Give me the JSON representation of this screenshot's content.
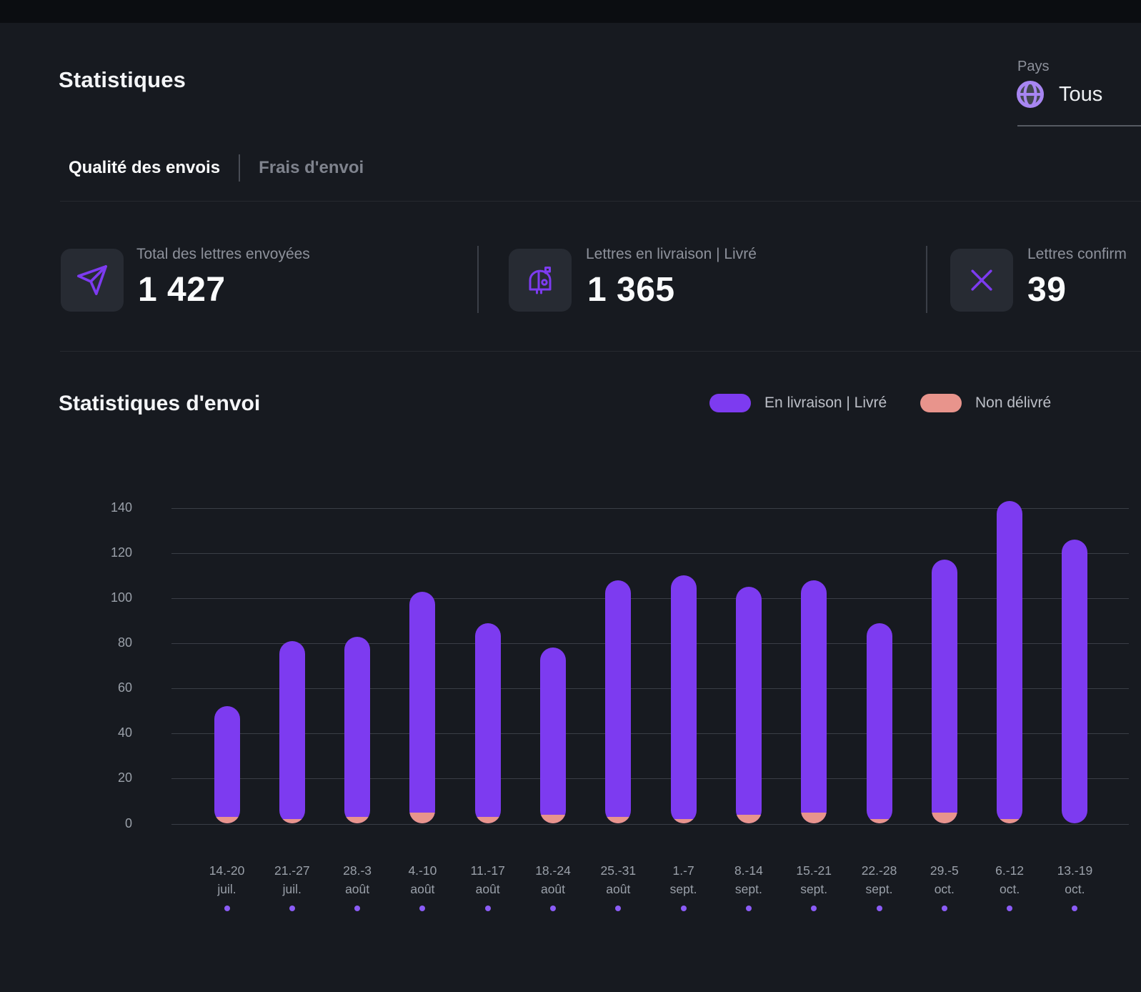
{
  "header": {
    "title": "Statistiques",
    "country_select": {
      "label": "Pays",
      "value": "Tous",
      "icon": "globe-icon"
    }
  },
  "tabs": [
    {
      "label": "Qualité des envois",
      "active": true
    },
    {
      "label": "Frais d'envoi",
      "active": false
    }
  ],
  "stats": [
    {
      "icon": "send-icon",
      "label": "Total des lettres envoyées",
      "value": "1 427"
    },
    {
      "icon": "mailbox-icon",
      "label": "Lettres en livraison | Livré",
      "value": "1 365"
    },
    {
      "icon": "x-icon",
      "label": "Lettres confirm",
      "value": "39"
    }
  ],
  "chart_section": {
    "title": "Statistiques d'envoi"
  },
  "legend": [
    {
      "label": "En livraison | Livré",
      "color": "#7d3bf0"
    },
    {
      "label": "Non délivré",
      "color": "#e8948c"
    }
  ],
  "colors": {
    "background": "#171a20",
    "accent_purple": "#7d3bf0",
    "accent_salmon": "#e8948c",
    "dot_purple": "#8b5cf6"
  },
  "chart_data": {
    "type": "bar",
    "stacked": true,
    "title": "Statistiques d'envoi",
    "xlabel": "",
    "ylabel": "",
    "ylim": [
      0,
      140
    ],
    "yticks": [
      0,
      20,
      40,
      60,
      80,
      100,
      120,
      140
    ],
    "grid": true,
    "legend_position": "top-right",
    "categories": [
      {
        "line1": "14.-20",
        "line2": "juil."
      },
      {
        "line1": "21.-27",
        "line2": "juil."
      },
      {
        "line1": "28.-3",
        "line2": "août"
      },
      {
        "line1": "4.-10",
        "line2": "août"
      },
      {
        "line1": "11.-17",
        "line2": "août"
      },
      {
        "line1": "18.-24",
        "line2": "août"
      },
      {
        "line1": "25.-31",
        "line2": "août"
      },
      {
        "line1": "1.-7",
        "line2": "sept."
      },
      {
        "line1": "8.-14",
        "line2": "sept."
      },
      {
        "line1": "15.-21",
        "line2": "sept."
      },
      {
        "line1": "22.-28",
        "line2": "sept."
      },
      {
        "line1": "29.-5",
        "line2": "oct."
      },
      {
        "line1": "6.-12",
        "line2": "oct."
      },
      {
        "line1": "13.-19",
        "line2": "oct."
      }
    ],
    "series": [
      {
        "name": "En livraison | Livré",
        "color": "#7d3bf0",
        "values": [
          49,
          79,
          80,
          98,
          86,
          74,
          105,
          108,
          101,
          103,
          87,
          112,
          141,
          126
        ]
      },
      {
        "name": "Non délivré",
        "color": "#e8948c",
        "values": [
          3,
          2,
          3,
          5,
          3,
          4,
          3,
          2,
          4,
          5,
          2,
          5,
          2,
          0
        ]
      }
    ],
    "totals": [
      52,
      81,
      83,
      103,
      89,
      78,
      108,
      110,
      105,
      108,
      89,
      117,
      143,
      126
    ]
  }
}
